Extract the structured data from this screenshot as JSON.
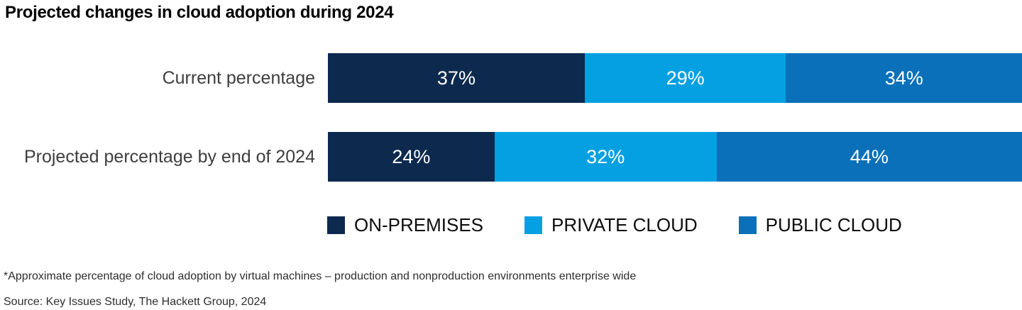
{
  "title": "Projected changes in cloud adoption during 2024",
  "chart_data": {
    "type": "bar",
    "orientation": "horizontal",
    "stacked": true,
    "unit": "%",
    "xlim": [
      0,
      100
    ],
    "grid": false,
    "legend_position": "bottom",
    "value_labels": "inside, white",
    "categories": [
      "Current percentage",
      "Projected percentage by end of 2024"
    ],
    "series": [
      {
        "name": "ON-PREMISES",
        "color": "#0d2a4e",
        "values": [
          37,
          24
        ]
      },
      {
        "name": "PRIVATE CLOUD",
        "color": "#05a0e2",
        "values": [
          29,
          32
        ]
      },
      {
        "name": "PUBLIC CLOUD",
        "color": "#0a70b9",
        "values": [
          34,
          44
        ]
      }
    ],
    "title": "Projected changes in cloud adoption during 2024"
  },
  "footnote": "*Approximate percentage of cloud adoption by virtual machines – production and nonproduction environments enterprise wide",
  "source": "Source: Key Issues Study, The Hackett Group, 2024"
}
